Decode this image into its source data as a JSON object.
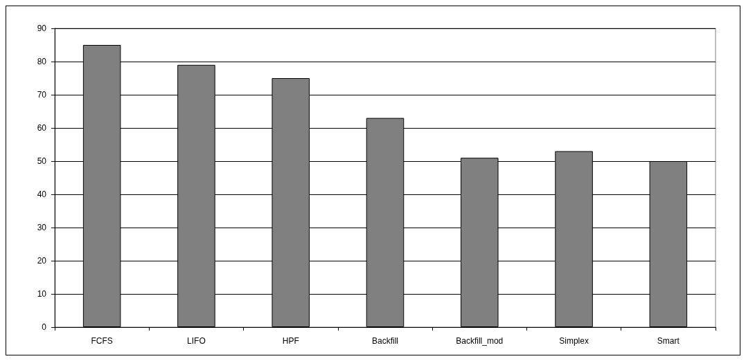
{
  "chart_data": {
    "type": "bar",
    "categories": [
      "FCFS",
      "LIFO",
      "HPF",
      "Backfill",
      "Backfill_mod",
      "Simplex",
      "Smart"
    ],
    "values": [
      85,
      79,
      75,
      63,
      51,
      53,
      50
    ],
    "color": "#808080",
    "ylim": [
      0,
      90
    ],
    "yticks": [
      0,
      10,
      20,
      30,
      40,
      50,
      60,
      70,
      80,
      90
    ],
    "grid": "y"
  }
}
